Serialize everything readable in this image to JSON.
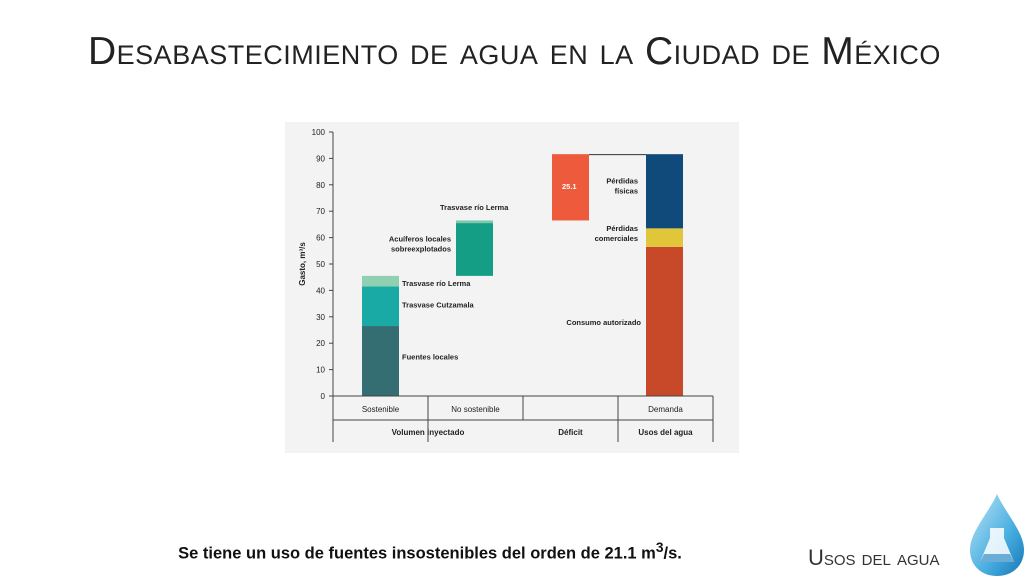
{
  "title": "Desabastecimiento de agua en la Ciudad de México",
  "caption": {
    "text_main": "Se tiene un uso de fuentes insostenibles del orden de 21.1 m",
    "superscript": "3",
    "text_end": "/s."
  },
  "section_label": "Usos del agua",
  "logo_icon": "water-drop-flask-icon",
  "colors": {
    "fuentes_locales": "#346d72",
    "cutzamala": "#1aaaa6",
    "lerma_sostenible": "#8fd0b2",
    "acuiferos": "#149e86",
    "lerma_no_sostenible": "#7fc8ae",
    "deficit": "#ee5a3c",
    "perdidas_fisicas": "#0f4a7a",
    "perdidas_comerciales": "#e2c63a",
    "consumo_autorizado": "#c8482a"
  },
  "chart_data": {
    "type": "bar",
    "subtype": "stacked-floating-waterfall",
    "ylabel": "Gasto, m³/s",
    "ylim": [
      0,
      100
    ],
    "yticks": [
      0,
      10,
      20,
      30,
      40,
      50,
      60,
      70,
      80,
      90,
      100
    ],
    "grid": false,
    "categories": [
      "Sostenible",
      "No sostenible",
      "",
      "Demanda"
    ],
    "category_groups": [
      {
        "label": "Volumen inyectado",
        "categories": [
          "Sostenible",
          "No sostenible"
        ]
      },
      {
        "label": "Déficit",
        "categories": [
          ""
        ]
      },
      {
        "label": "Usos del agua",
        "categories": [
          "Demanda"
        ]
      }
    ],
    "segments": [
      {
        "category": "Sostenible",
        "label": "Fuentes locales",
        "start": 0,
        "end": 26.5,
        "color_key": "fuentes_locales"
      },
      {
        "category": "Sostenible",
        "label": "Trasvase Cutzamala",
        "start": 26.5,
        "end": 41.5,
        "color_key": "cutzamala"
      },
      {
        "category": "Sostenible",
        "label": "Trasvase río Lerma",
        "start": 41.5,
        "end": 45.5,
        "color_key": "lerma_sostenible"
      },
      {
        "category": "No sostenible",
        "label": "Acuíferos locales sobreexplotados",
        "start": 45.5,
        "end": 65.5,
        "color_key": "acuiferos"
      },
      {
        "category": "No sostenible",
        "label": "Trasvase río Lerma",
        "start": 65.5,
        "end": 66.5,
        "color_key": "lerma_no_sostenible"
      },
      {
        "category": "",
        "label": "",
        "value_label": "25.1",
        "start": 66.5,
        "end": 91.6,
        "color_key": "deficit"
      },
      {
        "category": "Demanda",
        "label": "Consumo autorizado",
        "start": 0,
        "end": 56.5,
        "color_key": "consumo_autorizado"
      },
      {
        "category": "Demanda",
        "label": "Pérdidas comerciales",
        "start": 56.5,
        "end": 63.5,
        "color_key": "perdidas_comerciales"
      },
      {
        "category": "Demanda",
        "label": "Pérdidas físicas",
        "start": 63.5,
        "end": 91.6,
        "color_key": "perdidas_fisicas"
      }
    ]
  }
}
